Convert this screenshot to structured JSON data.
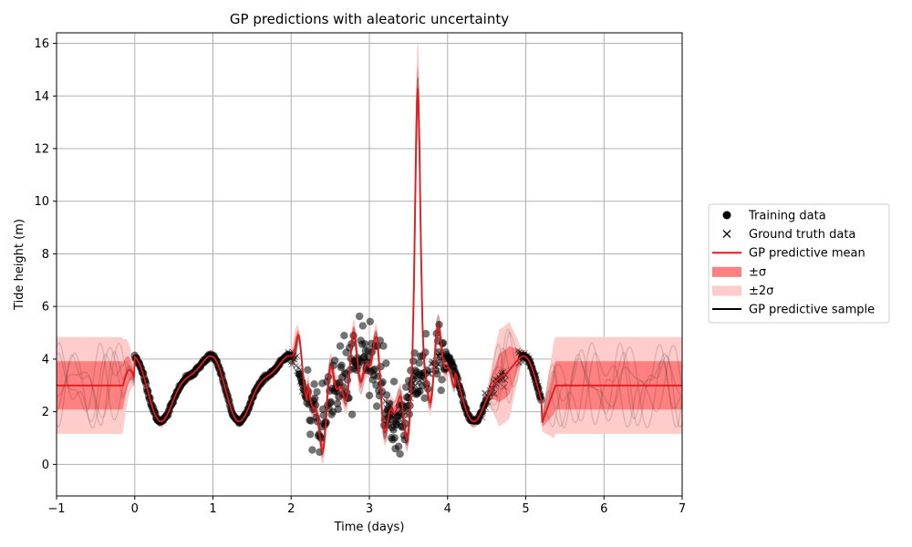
{
  "chart_data": {
    "type": "line",
    "title": "GP predictions with aleatoric uncertainty",
    "xlabel": "Time (days)",
    "ylabel": "Tide height (m)",
    "xlim": [
      -1,
      7
    ],
    "ylim": [
      -1.2,
      16.4
    ],
    "xticks": [
      -1,
      0,
      1,
      2,
      3,
      4,
      5,
      6,
      7
    ],
    "yticks": [
      0,
      2,
      4,
      6,
      8,
      10,
      12,
      14,
      16
    ],
    "grid": true,
    "legend_position": "right, outside plot",
    "legend": [
      {
        "label": "Training data",
        "marker": "circle",
        "color": "#000000"
      },
      {
        "label": "Ground truth data",
        "marker": "x",
        "color": "#000000"
      },
      {
        "label": "GP predictive mean",
        "marker": "line",
        "color": "#e31a1c"
      },
      {
        "label": "±σ",
        "marker": "patch",
        "color": "#ff8080"
      },
      {
        "label": "±2σ",
        "marker": "patch",
        "color": "#ffcccc"
      },
      {
        "label": "GP predictive sample",
        "marker": "line",
        "color": "#000000"
      }
    ],
    "training_windows": [
      [
        0,
        2
      ],
      [
        2.1,
        3.75
      ],
      [
        3.85,
        4.5
      ],
      [
        4.95,
        5.2
      ]
    ],
    "ground_truth_windows": [
      [
        1.95,
        2.15
      ],
      [
        3.2,
        3.7
      ],
      [
        3.75,
        3.9
      ],
      [
        4.45,
        4.75
      ],
      [
        4.9,
        5.2
      ]
    ],
    "noisy_window": [
      2.2,
      4.0
    ],
    "gp_mean_key_points": [
      {
        "x": -1,
        "y": 3.0
      },
      {
        "x": -0.15,
        "y": 3.0
      },
      {
        "x": -0.05,
        "y": 3.6
      },
      {
        "x": 0.05,
        "y": 1.9
      },
      {
        "x": 2.1,
        "y": 4.8
      },
      {
        "x": 3.62,
        "y": 14.1
      },
      {
        "x": 3.8,
        "y": 3.8
      },
      {
        "x": 5.22,
        "y": 1.5
      },
      {
        "x": 5.35,
        "y": 3.0
      },
      {
        "x": 7,
        "y": 3.0
      }
    ],
    "sigma_outside_data": 0.8,
    "colors": {
      "mean": "#e31a1c",
      "band1": "#ff8080",
      "band2": "#ffcccc",
      "points": "#000000",
      "grid": "#b0b0b0"
    }
  }
}
